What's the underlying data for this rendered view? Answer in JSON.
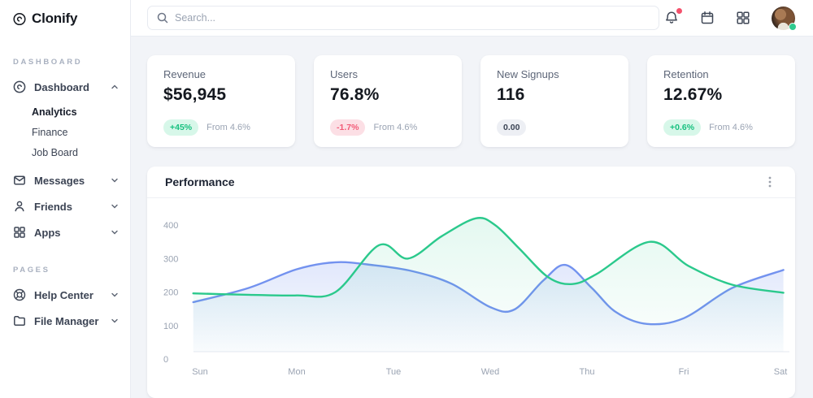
{
  "brand": {
    "name": "Clonify",
    "logo_icon": "clonify-logo-icon"
  },
  "sidebar": {
    "sections": [
      {
        "label": "DASHBOARD",
        "items": [
          {
            "label": "Dashboard",
            "icon": "disc-icon",
            "expanded": true,
            "children": [
              "Analytics",
              "Finance",
              "Job Board"
            ],
            "active_child": "Analytics"
          },
          {
            "label": "Messages",
            "icon": "mail-icon"
          },
          {
            "label": "Friends",
            "icon": "user-icon"
          },
          {
            "label": "Apps",
            "icon": "grid-icon"
          }
        ]
      },
      {
        "label": "PAGES",
        "items": [
          {
            "label": "Help Center",
            "icon": "lifebuoy-icon"
          },
          {
            "label": "File Manager",
            "icon": "folder-icon"
          }
        ]
      }
    ]
  },
  "topbar": {
    "search_placeholder": "Search...",
    "icons": [
      "bell-icon",
      "calendar-icon",
      "apps-grid-icon",
      "avatar"
    ],
    "bell_has_notification": true,
    "avatar_status_color": "#2fcb8f"
  },
  "stats": [
    {
      "label": "Revenue",
      "value": "$56,945",
      "badge": "+45%",
      "badge_type": "positive",
      "note": "From 4.6%"
    },
    {
      "label": "Users",
      "value": "76.8%",
      "badge": "-1.7%",
      "badge_type": "negative",
      "note": "From 4.6%"
    },
    {
      "label": "New Signups",
      "value": "116",
      "badge": "0.00",
      "badge_type": "neutral",
      "note": ""
    },
    {
      "label": "Retention",
      "value": "12.67%",
      "badge": "+0.6%",
      "badge_type": "positive",
      "note": "From 4.6%"
    }
  ],
  "chart_data": {
    "type": "area",
    "title": "Performance",
    "categories": [
      "Sun",
      "Mon",
      "Tue",
      "Wed",
      "Thu",
      "Fri",
      "Sat"
    ],
    "y_ticks": [
      0,
      100,
      200,
      300,
      400
    ],
    "ylim": [
      0,
      440
    ],
    "grid": false,
    "legend": "none",
    "x_unit": "day index (0=Sun, fractional points follow the drawn curve)",
    "series": [
      {
        "name": "blue",
        "color": "#7392ef",
        "fill_top_opacity": 0.33,
        "fill_bottom_opacity": 0.03,
        "values_at_categories": [
          148,
          246,
          250,
          133,
          190,
          100,
          244
        ],
        "points": [
          [
            -0.07,
            148
          ],
          [
            0.5,
            190
          ],
          [
            1,
            246
          ],
          [
            1.4,
            267
          ],
          [
            1.8,
            258
          ],
          [
            2.2,
            240
          ],
          [
            2.6,
            203
          ],
          [
            3,
            133
          ],
          [
            3.25,
            126
          ],
          [
            3.55,
            213
          ],
          [
            3.78,
            259
          ],
          [
            4.05,
            190
          ],
          [
            4.3,
            118
          ],
          [
            4.62,
            83
          ],
          [
            5,
            100
          ],
          [
            5.5,
            190
          ],
          [
            6.03,
            244
          ]
        ]
      },
      {
        "name": "green",
        "color": "#2bc98c",
        "fill_top_opacity": 0.14,
        "fill_bottom_opacity": 0.01,
        "values_at_categories": [
          173,
          168,
          295,
          380,
          215,
          258,
          176
        ],
        "points": [
          [
            -0.07,
            174
          ],
          [
            0.5,
            170
          ],
          [
            1,
            168
          ],
          [
            1.4,
            178
          ],
          [
            1.85,
            318
          ],
          [
            2.15,
            278
          ],
          [
            2.5,
            345
          ],
          [
            2.85,
            398
          ],
          [
            3.05,
            378
          ],
          [
            3.3,
            308
          ],
          [
            3.6,
            222
          ],
          [
            3.85,
            202
          ],
          [
            4.1,
            232
          ],
          [
            4.65,
            328
          ],
          [
            5.05,
            256
          ],
          [
            5.5,
            200
          ],
          [
            6.03,
            176
          ]
        ]
      }
    ]
  }
}
